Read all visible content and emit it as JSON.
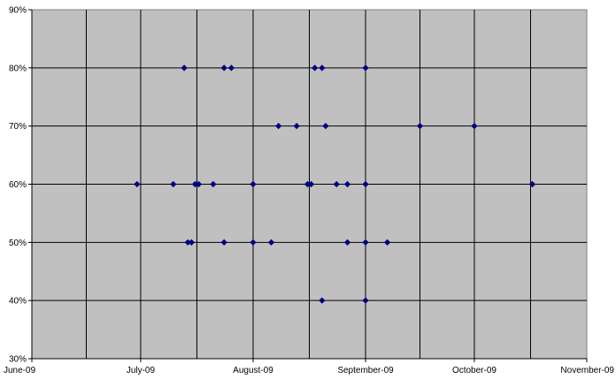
{
  "chart_data": {
    "type": "scatter",
    "title": "",
    "xlabel": "",
    "ylabel": "",
    "x_ticks": [
      "June-09",
      "July-09",
      "August-09",
      "September-09",
      "October-09",
      "November-09"
    ],
    "x_tick_dates": [
      "2009-06-01",
      "2009-07-01",
      "2009-08-01",
      "2009-09-01",
      "2009-10-01",
      "2009-11-01"
    ],
    "xlim": [
      "2009-06-01",
      "2009-11-01"
    ],
    "y_ticks": [
      "30%",
      "40%",
      "50%",
      "60%",
      "70%",
      "80%",
      "90%"
    ],
    "ylim": [
      30,
      90
    ],
    "y_unit": "%",
    "grid": "major x and y",
    "legend": "none",
    "colors": {
      "plot_background": "#c0c0c0",
      "gridline": "#000000",
      "marker": "#000080"
    },
    "points": [
      {
        "x": "2009-06-30",
        "y": 60
      },
      {
        "x": "2009-07-10",
        "y": 60
      },
      {
        "x": "2009-07-13",
        "y": 80
      },
      {
        "x": "2009-07-14",
        "y": 50
      },
      {
        "x": "2009-07-15",
        "y": 50
      },
      {
        "x": "2009-07-16",
        "y": 60
      },
      {
        "x": "2009-07-17",
        "y": 60
      },
      {
        "x": "2009-07-21",
        "y": 60
      },
      {
        "x": "2009-07-24",
        "y": 80
      },
      {
        "x": "2009-07-24",
        "y": 50
      },
      {
        "x": "2009-07-26",
        "y": 80
      },
      {
        "x": "2009-08-01",
        "y": 60
      },
      {
        "x": "2009-08-01",
        "y": 50
      },
      {
        "x": "2009-08-06",
        "y": 50
      },
      {
        "x": "2009-08-08",
        "y": 70
      },
      {
        "x": "2009-08-13",
        "y": 70
      },
      {
        "x": "2009-08-16",
        "y": 60
      },
      {
        "x": "2009-08-17",
        "y": 60
      },
      {
        "x": "2009-08-18",
        "y": 80
      },
      {
        "x": "2009-08-20",
        "y": 80
      },
      {
        "x": "2009-08-20",
        "y": 40
      },
      {
        "x": "2009-08-21",
        "y": 70
      },
      {
        "x": "2009-08-24",
        "y": 60
      },
      {
        "x": "2009-08-27",
        "y": 60
      },
      {
        "x": "2009-08-27",
        "y": 50
      },
      {
        "x": "2009-09-01",
        "y": 80
      },
      {
        "x": "2009-09-01",
        "y": 60
      },
      {
        "x": "2009-09-01",
        "y": 50
      },
      {
        "x": "2009-09-01",
        "y": 40
      },
      {
        "x": "2009-09-07",
        "y": 50
      },
      {
        "x": "2009-09-16",
        "y": 70
      },
      {
        "x": "2009-10-01",
        "y": 70
      },
      {
        "x": "2009-10-17",
        "y": 60
      }
    ]
  }
}
